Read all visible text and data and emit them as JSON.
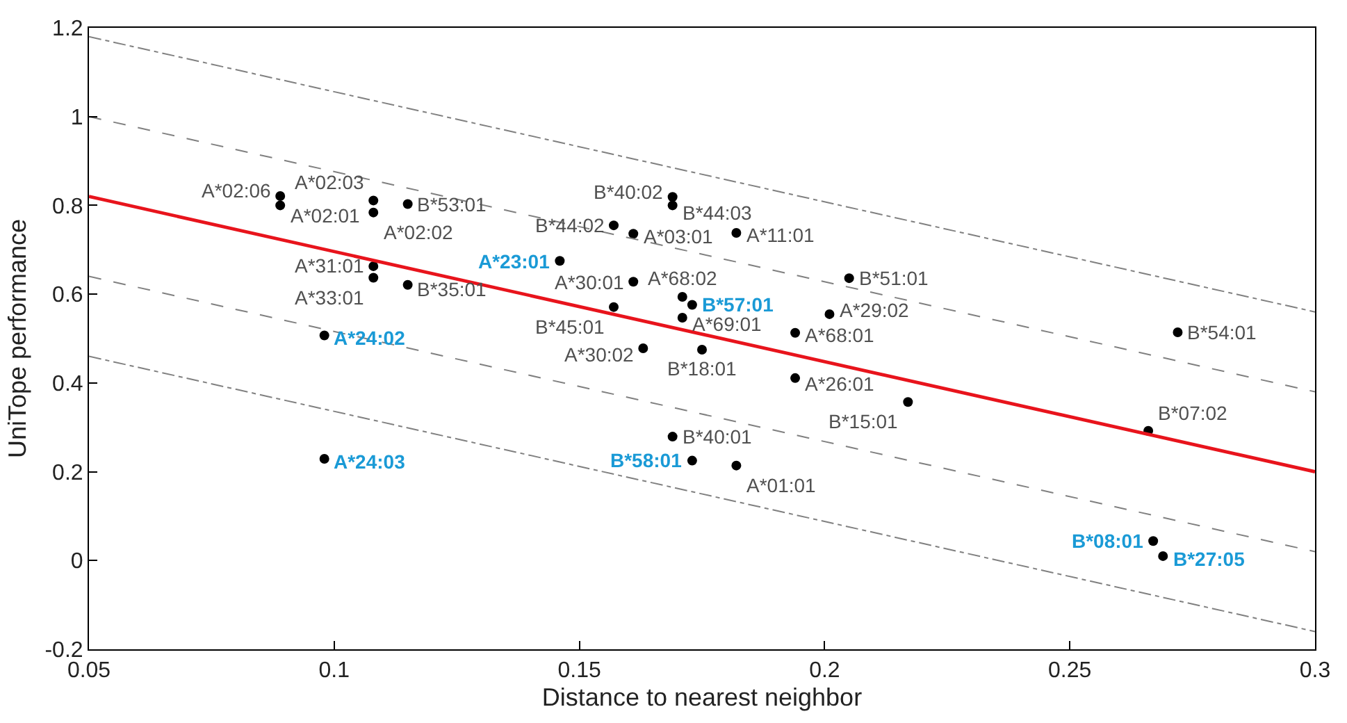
{
  "chart_data": {
    "type": "scatter",
    "xlabel": "Distance to nearest neighbor",
    "ylabel": "UniTope performance",
    "xlim": [
      0.05,
      0.3
    ],
    "xticks": [
      0.05,
      0.1,
      0.15,
      0.2,
      0.25,
      0.3
    ],
    "ylim": [
      -0.2,
      1.2
    ],
    "yticks": [
      -0.2,
      0,
      0.2,
      0.4,
      0.6,
      0.8,
      1,
      1.2
    ],
    "marker": "circle",
    "series": [
      {
        "color": "#000000",
        "x": [
          0.089,
          0.089,
          0.108,
          0.108,
          0.115,
          0.157,
          0.146,
          0.108,
          0.108,
          0.115,
          0.161,
          0.157,
          0.098,
          0.098,
          0.169,
          0.169,
          0.161,
          0.182,
          0.171,
          0.173,
          0.171,
          0.163,
          0.175,
          0.205,
          0.201,
          0.194,
          0.194,
          0.217,
          0.169,
          0.173,
          0.182,
          0.272,
          0.266,
          0.267,
          0.269
        ],
        "values": [
          0.821,
          0.8,
          0.811,
          0.784,
          0.803,
          0.755,
          0.675,
          0.663,
          0.637,
          0.621,
          0.628,
          0.571,
          0.507,
          0.229,
          0.819,
          0.8,
          0.736,
          0.738,
          0.594,
          0.576,
          0.547,
          0.478,
          0.475,
          0.636,
          0.555,
          0.513,
          0.411,
          0.357,
          0.279,
          0.225,
          0.214,
          0.514,
          0.292,
          0.044,
          0.01
        ]
      },
      {
        "type": "line",
        "color": "#e8141c",
        "line_style": "solid",
        "marker": "none",
        "x": [
          0.05,
          0.3
        ],
        "values": [
          0.82,
          0.2
        ]
      },
      {
        "type": "line",
        "color": "#808080",
        "line_style": "dashed",
        "marker": "none",
        "x": [
          0.05,
          0.3
        ],
        "values": [
          1.0,
          0.38
        ]
      },
      {
        "type": "line",
        "color": "#808080",
        "line_style": "dashed",
        "marker": "none",
        "x": [
          0.05,
          0.3
        ],
        "values": [
          0.64,
          0.02
        ]
      },
      {
        "type": "line",
        "color": "#808080",
        "line_style": "dashdot",
        "marker": "none",
        "x": [
          0.05,
          0.3
        ],
        "values": [
          1.18,
          0.56
        ]
      },
      {
        "type": "line",
        "color": "#808080",
        "line_style": "dashdot",
        "marker": "none",
        "x": [
          0.05,
          0.3
        ],
        "values": [
          0.46,
          -0.16
        ]
      }
    ],
    "annotations": [
      {
        "text": "A*02:06",
        "x": 0.089,
        "y": 0.821
      },
      {
        "text": "A*02:01",
        "x": 0.089,
        "y": 0.8
      },
      {
        "text": "A*02:03",
        "x": 0.108,
        "y": 0.811
      },
      {
        "text": "A*02:02",
        "x": 0.108,
        "y": 0.784
      },
      {
        "text": "B*53:01",
        "x": 0.115,
        "y": 0.803
      },
      {
        "text": "B*44:02",
        "x": 0.157,
        "y": 0.755
      },
      {
        "text": "A*23:01",
        "x": 0.146,
        "y": 0.675
      },
      {
        "text": "A*31:01",
        "x": 0.108,
        "y": 0.663
      },
      {
        "text": "A*33:01",
        "x": 0.108,
        "y": 0.637
      },
      {
        "text": "B*35:01",
        "x": 0.115,
        "y": 0.621
      },
      {
        "text": "A*30:01",
        "x": 0.161,
        "y": 0.628
      },
      {
        "text": "B*45:01",
        "x": 0.157,
        "y": 0.571
      },
      {
        "text": "A*24:02",
        "x": 0.098,
        "y": 0.507
      },
      {
        "text": "A*24:03",
        "x": 0.098,
        "y": 0.229
      },
      {
        "text": "B*40:02",
        "x": 0.169,
        "y": 0.819
      },
      {
        "text": "B*44:03",
        "x": 0.169,
        "y": 0.8
      },
      {
        "text": "A*03:01",
        "x": 0.161,
        "y": 0.736
      },
      {
        "text": "A*11:01",
        "x": 0.182,
        "y": 0.738
      },
      {
        "text": "A*68:02",
        "x": 0.171,
        "y": 0.594
      },
      {
        "text": "B*57:01",
        "x": 0.173,
        "y": 0.576
      },
      {
        "text": "A*69:01",
        "x": 0.171,
        "y": 0.547
      },
      {
        "text": "A*30:02",
        "x": 0.163,
        "y": 0.478
      },
      {
        "text": "B*18:01",
        "x": 0.175,
        "y": 0.475
      },
      {
        "text": "B*51:01",
        "x": 0.205,
        "y": 0.636
      },
      {
        "text": "A*29:02",
        "x": 0.201,
        "y": 0.555
      },
      {
        "text": "A*68:01",
        "x": 0.194,
        "y": 0.513
      },
      {
        "text": "A*26:01",
        "x": 0.194,
        "y": 0.411
      },
      {
        "text": "B*15:01",
        "x": 0.217,
        "y": 0.357
      },
      {
        "text": "B*40:01",
        "x": 0.169,
        "y": 0.279
      },
      {
        "text": "B*58:01",
        "x": 0.173,
        "y": 0.225
      },
      {
        "text": "A*01:01",
        "x": 0.182,
        "y": 0.214
      },
      {
        "text": "B*54:01",
        "x": 0.272,
        "y": 0.514
      },
      {
        "text": "B*07:02",
        "x": 0.266,
        "y": 0.292
      },
      {
        "text": "B*08:01",
        "x": 0.267,
        "y": 0.044
      },
      {
        "text": "B*27:05",
        "x": 0.269,
        "y": 0.01
      }
    ]
  }
}
